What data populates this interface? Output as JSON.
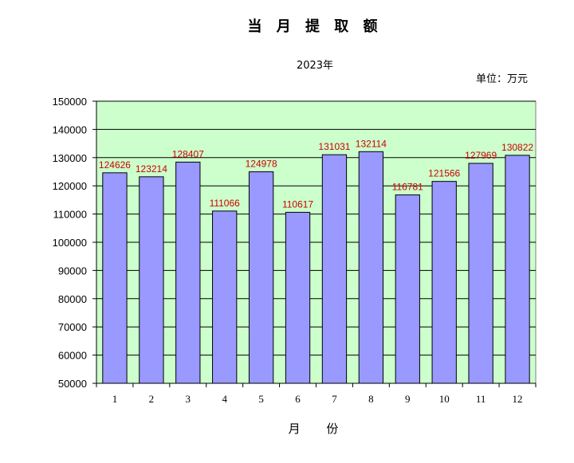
{
  "chart_data": {
    "type": "bar",
    "title": "当 月 提 取 额",
    "subtitle": "2023年",
    "unit": "单位：万元",
    "xlabel": "月  份",
    "ylabel": "",
    "categories": [
      "1",
      "2",
      "3",
      "4",
      "5",
      "6",
      "7",
      "8",
      "9",
      "10",
      "11",
      "12"
    ],
    "values": [
      124626,
      123214,
      128407,
      111066,
      124978,
      110617,
      131031,
      132114,
      116781,
      121566,
      127969,
      130822
    ],
    "value_labels": [
      "124626",
      "123214",
      "128407",
      "111066",
      "124978",
      "110617",
      "131031",
      "132114",
      "116781",
      "121566",
      "127969",
      "130822"
    ],
    "ylim": [
      50000,
      150000
    ],
    "yticks": [
      50000,
      60000,
      70000,
      80000,
      90000,
      100000,
      110000,
      120000,
      130000,
      140000,
      150000
    ],
    "ytick_labels": [
      "50000",
      "60000",
      "70000",
      "80000",
      "90000",
      "100000",
      "110000",
      "120000",
      "130000",
      "140000",
      "150000"
    ],
    "grid": true,
    "colors": {
      "bar_fill": "#9999ff",
      "bar_stroke": "#000000",
      "plot_background": "#ccffcc",
      "data_label": "#cc0000"
    }
  }
}
